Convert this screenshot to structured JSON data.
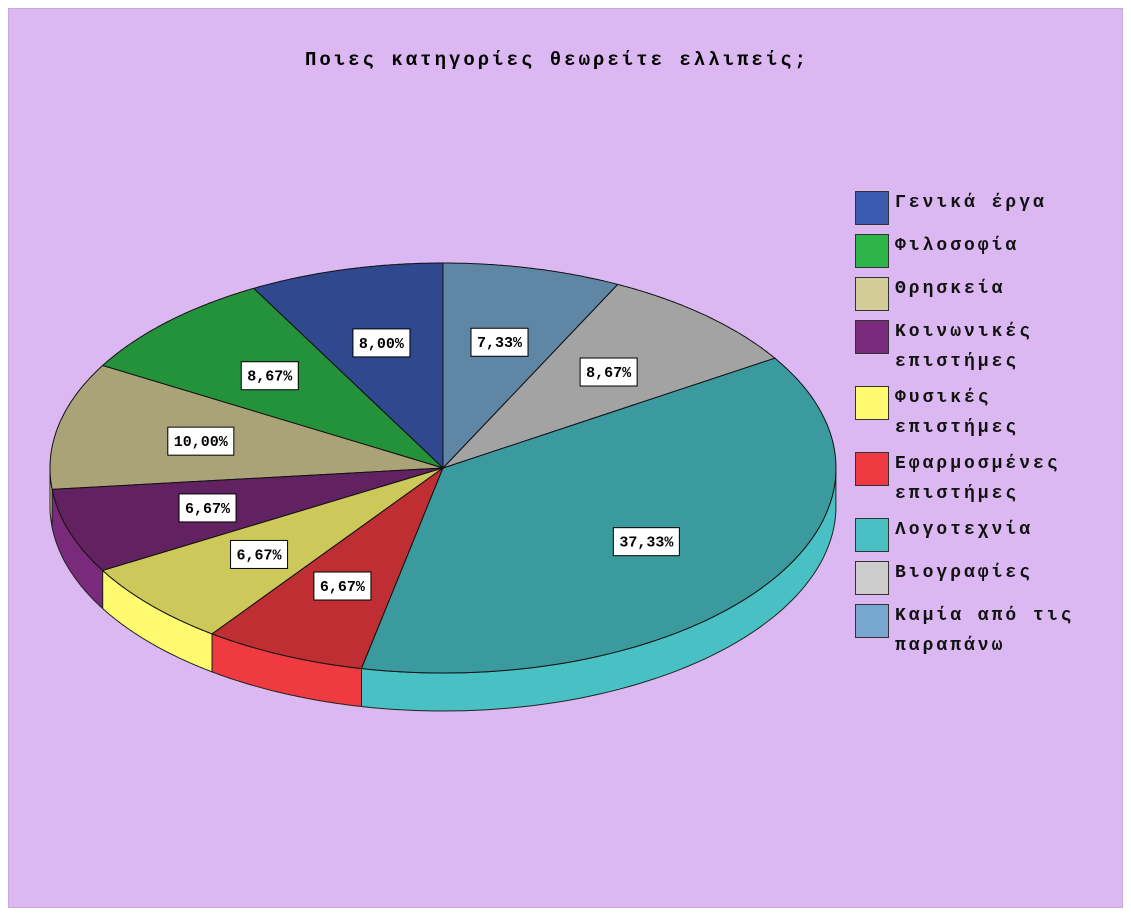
{
  "chart_data": {
    "type": "pie",
    "title": "Ποιες κατηγορίες θεωρείτε ελλιπείς;",
    "categories": [
      "Γενικά έργα",
      "Φιλοσοφία",
      "Θρησκεία",
      "Κοινωνικές επιστήμες",
      "Φυσικές επιστήμες",
      "Εφαρμοσμένες επιστήμες",
      "Λογοτεχνία",
      "Βιογραφίες",
      "Καμία από τις παραπάνω"
    ],
    "values": [
      8.0,
      8.67,
      10.0,
      6.67,
      6.67,
      6.67,
      37.33,
      8.67,
      7.33
    ],
    "value_labels": [
      "8,00%",
      "8,67%",
      "10,00%",
      "6,67%",
      "6,67%",
      "6,67%",
      "37,33%",
      "8,67%",
      "7,33%"
    ],
    "colors": [
      "#3c5ab0",
      "#2db54a",
      "#d4cc96",
      "#7a2a7a",
      "#fffa70",
      "#ee3a40",
      "#48c0c4",
      "#cccccc",
      "#78a8d0"
    ],
    "legend": "right"
  }
}
